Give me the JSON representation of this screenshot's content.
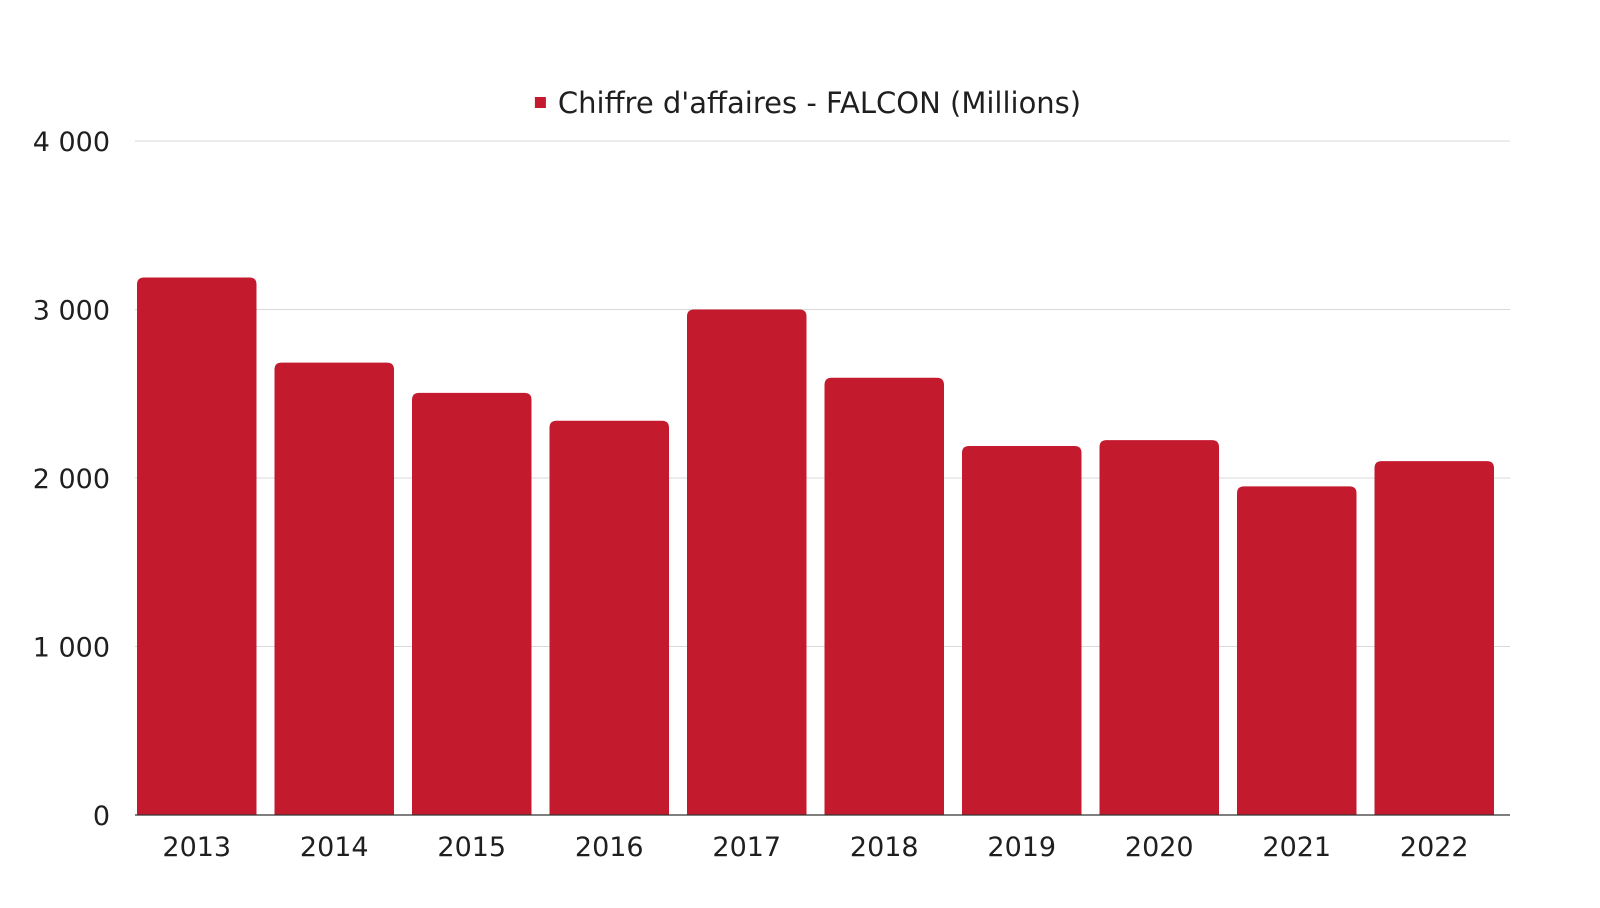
{
  "chart_data": {
    "type": "bar",
    "categories": [
      "2013",
      "2014",
      "2015",
      "2016",
      "2017",
      "2018",
      "2019",
      "2020",
      "2021",
      "2022"
    ],
    "series": [
      {
        "name": "Chiffre d'affaires - FALCON (Millions)",
        "color": "#c41a2e",
        "values": [
          3190,
          2685,
          2505,
          2340,
          3000,
          2595,
          2190,
          2225,
          1950,
          2100
        ]
      }
    ],
    "ylim": [
      0,
      4000
    ],
    "yticks": [
      0,
      1000,
      2000,
      3000,
      4000
    ],
    "ytick_labels": [
      "0",
      "1 000",
      "2 000",
      "3 000",
      "4 000"
    ],
    "grid": true,
    "legend_position": "top-center"
  }
}
